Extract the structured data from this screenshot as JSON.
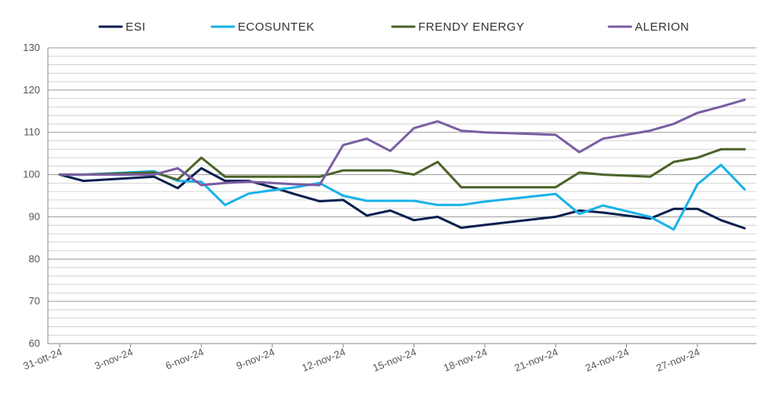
{
  "chart_data": {
    "type": "line",
    "legend_position": "top",
    "grid": true,
    "ylim": [
      60,
      130
    ],
    "y_ticks": [
      60,
      70,
      80,
      90,
      100,
      110,
      120,
      130
    ],
    "y_tick_labels": [
      "60",
      "70",
      "80",
      "90",
      "100",
      "110",
      "120",
      "130"
    ],
    "x_tick_labels": [
      "31-ott-24",
      "3-nov-24",
      "6-nov-24",
      "9-nov-24",
      "12-nov-24",
      "15-nov-24",
      "18-nov-24",
      "21-nov-24",
      "24-nov-24",
      "27-nov-24"
    ],
    "x_tick_positions": [
      0,
      3,
      6,
      9,
      12,
      15,
      18,
      21,
      24,
      27
    ],
    "x_range": [
      -0.5,
      29.5
    ],
    "x": [
      0,
      1,
      4,
      5,
      6,
      7,
      8,
      9,
      10,
      11,
      12,
      13,
      14,
      15,
      16,
      17,
      18,
      21,
      22,
      23,
      25,
      26,
      27,
      28,
      29
    ],
    "series": [
      {
        "name": "ESI",
        "color": "#0b1f4f",
        "values": [
          100,
          98.5,
          99.5,
          96.8,
          101.5,
          98.5,
          98.5,
          97,
          95.3,
          93.7,
          94,
          90.3,
          91.5,
          89.2,
          90,
          87.4,
          88.1,
          90,
          91.5,
          91,
          89.6,
          91.9,
          91.9,
          89.2,
          87.3
        ]
      },
      {
        "name": "ECOSUNTEK",
        "color": "#1ab2e8",
        "values": [
          100,
          100,
          100.8,
          98.5,
          98.3,
          92.8,
          95.5,
          96.3,
          97,
          98,
          95,
          93.8,
          93.8,
          93.8,
          92.8,
          92.8,
          93.6,
          95.4,
          90.7,
          92.7,
          90,
          87,
          97.7,
          102.3,
          96.5
        ]
      },
      {
        "name": "FRENDY ENERGY",
        "color": "#4b6328",
        "values": [
          100,
          100,
          100.5,
          98.8,
          104,
          99.5,
          99.5,
          99.5,
          99.5,
          99.5,
          101,
          101,
          101,
          100,
          103,
          97,
          97,
          97,
          100.5,
          100,
          99.5,
          103,
          104,
          106,
          106
        ]
      },
      {
        "name": "ALERION",
        "color": "#7a5ea2",
        "values": [
          100,
          100,
          100,
          101.5,
          97.5,
          98,
          98.3,
          98,
          97.7,
          97.5,
          107,
          108.5,
          105.6,
          111,
          112.6,
          110.4,
          110,
          109.4,
          105.3,
          108.5,
          110.4,
          112,
          114.6,
          116.1,
          117.7
        ]
      }
    ]
  }
}
